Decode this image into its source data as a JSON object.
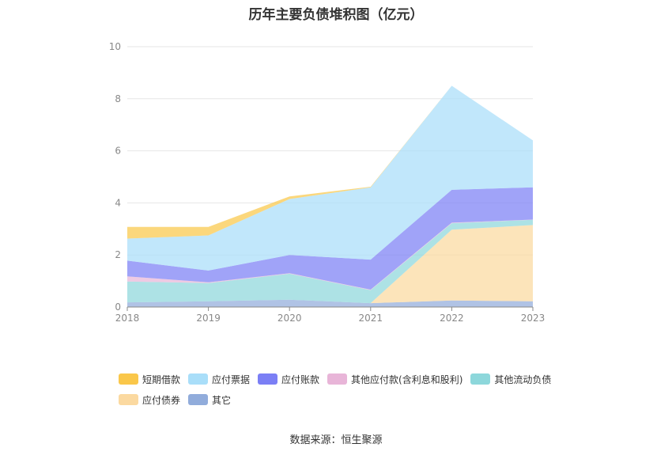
{
  "chart_data": {
    "type": "area",
    "stacked": true,
    "title": "历年主要负债堆积图（亿元）",
    "categories": [
      "2018",
      "2019",
      "2020",
      "2021",
      "2022",
      "2023"
    ],
    "ylim": [
      0,
      10
    ],
    "yticks": [
      "0",
      "2",
      "4",
      "6",
      "8",
      "10"
    ],
    "grid": true,
    "legend_position": "bottom",
    "series": [
      {
        "name": "其它",
        "color": "#91acdb",
        "values": [
          0.18,
          0.22,
          0.28,
          0.15,
          0.25,
          0.22
        ]
      },
      {
        "name": "应付债券",
        "color": "#fbd9a0",
        "values": [
          0,
          0,
          0,
          0,
          2.72,
          2.93
        ]
      },
      {
        "name": "其他流动负债",
        "color": "#8dd7db",
        "values": [
          0.8,
          0.7,
          1.0,
          0.5,
          0.25,
          0.2
        ]
      },
      {
        "name": "其他应付款(含利息和股利)",
        "color": "#e8b5d8",
        "values": [
          0.2,
          0.03,
          0.02,
          0.02,
          0.02,
          0.01
        ]
      },
      {
        "name": "应付账款",
        "color": "#7b7ff5",
        "values": [
          0.6,
          0.45,
          0.7,
          1.15,
          1.26,
          1.24
        ]
      },
      {
        "name": "应付票据",
        "color": "#a9def9",
        "values": [
          0.85,
          1.35,
          2.15,
          2.78,
          4.0,
          1.8
        ]
      },
      {
        "name": "短期借款",
        "color": "#fac74a",
        "values": [
          0.45,
          0.33,
          0.1,
          0.02,
          0,
          0
        ]
      }
    ],
    "legend_order": [
      "短期借款",
      "应付票据",
      "应付账款",
      "其他应付款(含利息和股利)",
      "其他流动负债",
      "应付债券",
      "其它"
    ]
  },
  "source": "数据来源：恒生聚源"
}
